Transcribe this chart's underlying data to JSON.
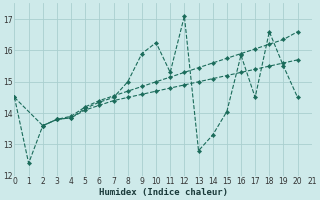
{
  "xlabel": "Humidex (Indice chaleur)",
  "xlim": [
    0,
    21
  ],
  "ylim": [
    12,
    17.5
  ],
  "yticks": [
    12,
    13,
    14,
    15,
    16,
    17
  ],
  "xticks": [
    0,
    1,
    2,
    3,
    4,
    5,
    6,
    7,
    8,
    9,
    10,
    11,
    12,
    13,
    14,
    15,
    16,
    17,
    18,
    19,
    20,
    21
  ],
  "bg_color": "#ceeaea",
  "grid_color": "#aacfcf",
  "line_color": "#1a6b5a",
  "lines": [
    {
      "x": [
        0,
        1,
        2,
        3,
        4,
        5,
        6,
        7,
        8,
        9,
        10,
        11,
        12,
        13,
        14,
        15,
        16,
        17,
        18,
        19,
        20
      ],
      "y": [
        14.5,
        12.4,
        13.6,
        13.8,
        13.85,
        14.15,
        14.35,
        14.5,
        15.0,
        15.9,
        16.25,
        15.3,
        17.1,
        12.8,
        13.3,
        14.05,
        15.85,
        14.5,
        16.6,
        15.5,
        14.5
      ]
    },
    {
      "x": [
        0,
        2,
        3,
        4,
        5,
        6,
        7,
        8,
        9,
        10,
        11,
        12,
        13,
        14,
        15,
        16,
        17,
        18,
        19,
        20
      ],
      "y": [
        14.5,
        13.6,
        13.8,
        13.85,
        14.1,
        14.25,
        14.4,
        14.5,
        14.6,
        14.7,
        14.8,
        14.9,
        15.0,
        15.1,
        15.2,
        15.3,
        15.4,
        15.5,
        15.6,
        15.7
      ]
    },
    {
      "x": [
        2,
        3,
        4,
        5,
        6,
        7,
        8,
        9,
        10,
        11,
        12,
        13,
        14,
        15,
        16,
        17,
        18,
        19,
        20
      ],
      "y": [
        13.6,
        13.8,
        13.9,
        14.2,
        14.4,
        14.55,
        14.7,
        14.85,
        15.0,
        15.15,
        15.3,
        15.45,
        15.6,
        15.75,
        15.9,
        16.05,
        16.2,
        16.35,
        16.6
      ]
    }
  ]
}
